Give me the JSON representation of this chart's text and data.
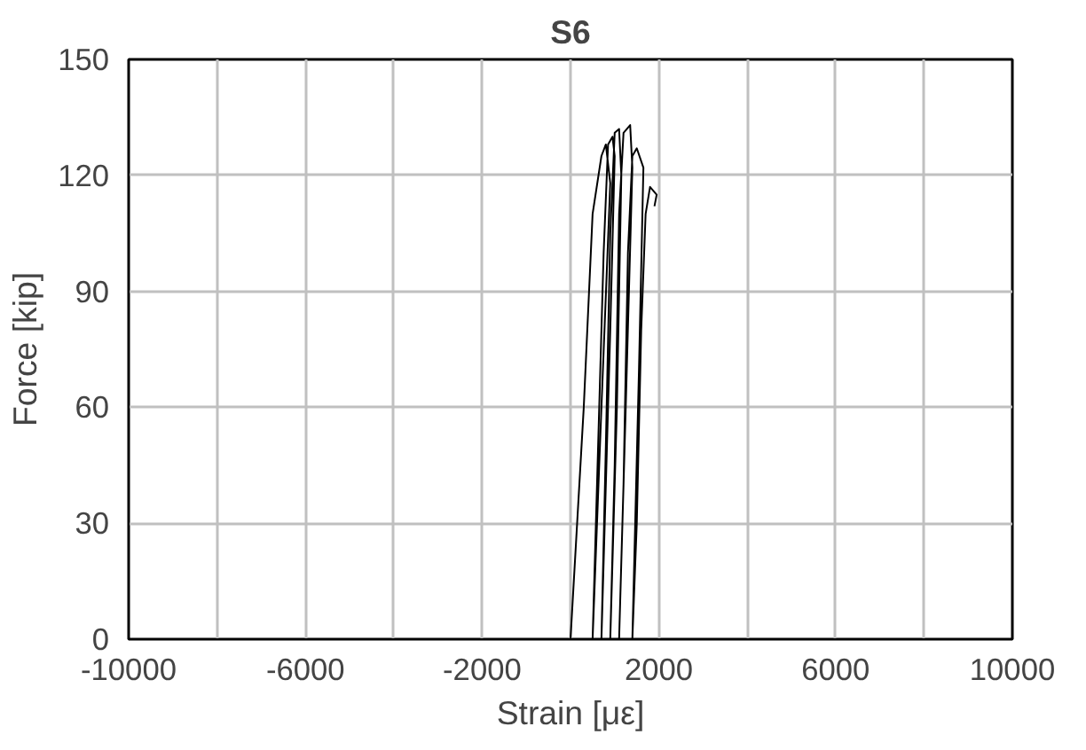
{
  "chart_data": {
    "type": "line",
    "title": "S6",
    "xlabel": "Strain [με]",
    "ylabel": "Force [kip]",
    "xlim": [
      -10000,
      10000
    ],
    "ylim": [
      0,
      150
    ],
    "xticks": [
      -10000,
      {
        "value": -8000,
        "label": null
      },
      -6000,
      {
        "value": -4000,
        "label": null
      },
      -2000,
      {
        "value": 0,
        "label": null
      },
      2000,
      {
        "value": 4000,
        "label": null
      },
      6000,
      {
        "value": 8000,
        "label": null
      },
      10000
    ],
    "yticks": [
      0,
      30,
      60,
      90,
      120,
      150
    ],
    "grid": true,
    "marker": "none",
    "line_style": "solid",
    "series": [
      {
        "color": "#000000",
        "x": [
          0,
          300,
          500,
          700,
          800,
          900,
          700,
          500,
          600,
          750,
          850,
          950,
          1000,
          900,
          700,
          800,
          900,
          1000,
          1100,
          1150,
          1050,
          900,
          1000,
          1100,
          1200,
          1350,
          1400,
          1250,
          1100,
          1200,
          1300,
          1400,
          1500,
          1650,
          1550,
          1400,
          1500,
          1600,
          1700,
          1800,
          1950,
          1900
        ],
        "values": [
          0,
          60,
          110,
          125,
          128,
          118,
          60,
          0,
          40,
          100,
          128,
          130,
          125,
          80,
          0,
          50,
          105,
          131,
          132,
          120,
          60,
          0,
          45,
          110,
          131,
          133,
          122,
          60,
          0,
          40,
          100,
          125,
          127,
          122,
          70,
          0,
          30,
          80,
          110,
          117,
          115,
          112
        ]
      }
    ]
  }
}
